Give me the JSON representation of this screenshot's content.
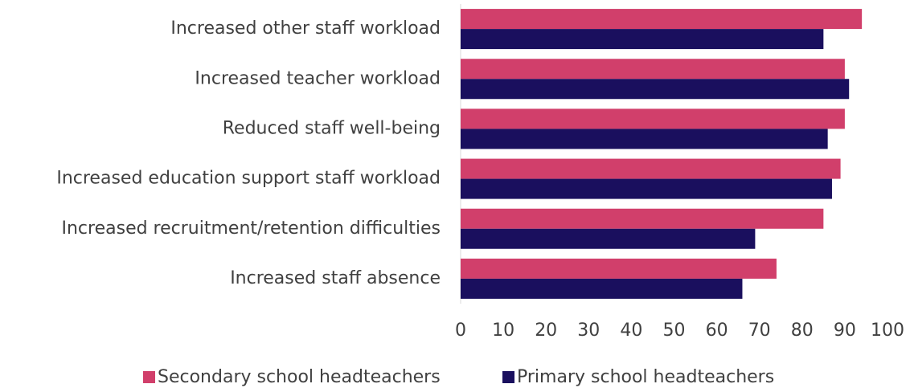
{
  "chart_data": {
    "type": "bar",
    "orientation": "horizontal",
    "categories": [
      "Increased other staff workload",
      "Increased teacher workload",
      "Reduced staff well-being",
      "Increased education support staff workload",
      "Increased recruitment/retention difficulties",
      "Increased staff absence"
    ],
    "series": [
      {
        "name": "Secondary school headteachers",
        "color": "#d13f6b",
        "values": [
          94,
          90,
          90,
          89,
          85,
          74
        ]
      },
      {
        "name": "Primary school headteachers",
        "color": "#1a0f5e",
        "values": [
          85,
          91,
          86,
          87,
          69,
          66
        ]
      }
    ],
    "xlim": [
      0,
      100
    ],
    "xticks": [
      0,
      10,
      20,
      30,
      40,
      50,
      60,
      70,
      80,
      90,
      100
    ],
    "grid": false,
    "legend": "bottom"
  }
}
